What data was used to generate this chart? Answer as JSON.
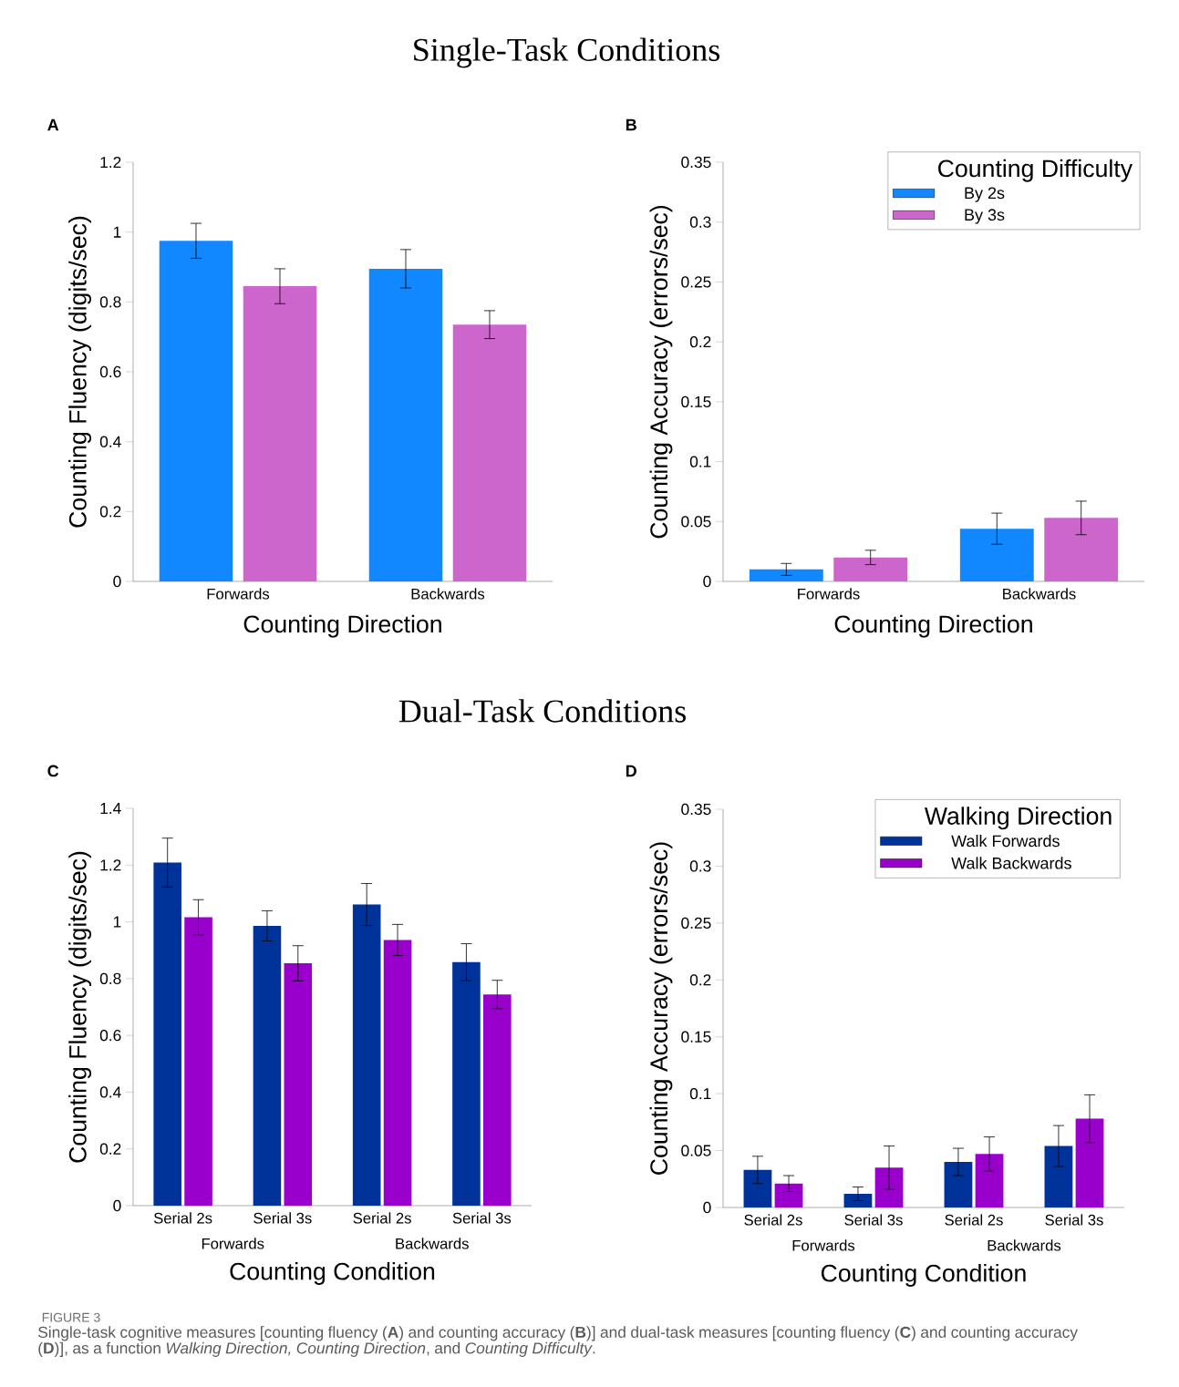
{
  "chart_data": [
    {
      "type": "bar",
      "title": "Single-Task Conditions",
      "subtitle": "A",
      "xlabel": "Counting Direction",
      "ylabel": "Counting Fluency (digits/sec)",
      "categories": [
        "Forwards",
        "Backwards"
      ],
      "ylim": [
        0,
        1.2
      ],
      "yticks": [
        0,
        0.2,
        0.4,
        0.6,
        0.8,
        1,
        1.2
      ],
      "series": [
        {
          "color": "#1188ff",
          "values": [
            0.975,
            0.895
          ],
          "errors": [
            0.05,
            0.055
          ]
        },
        {
          "color": "#cc66cc",
          "values": [
            0.845,
            0.735
          ],
          "errors": [
            0.05,
            0.04
          ]
        }
      ]
    },
    {
      "type": "bar",
      "title": "B",
      "xlabel": "Counting Direction",
      "ylabel": "Counting Accuracy (errors/sec)",
      "categories": [
        "Forwards",
        "Backwards"
      ],
      "ylim": [
        0,
        0.35
      ],
      "yticks": [
        0,
        0.05,
        0.1,
        0.15,
        0.2,
        0.25,
        0.3,
        0.35
      ],
      "legend": "top right",
      "legend_title": "Counting Difficulty",
      "series": [
        {
          "name": "By 2s",
          "color": "#1188ff",
          "values": [
            0.01,
            0.044
          ],
          "errors": [
            0.005,
            0.013
          ]
        },
        {
          "name": "By 3s",
          "color": "#cc66cc",
          "values": [
            0.02,
            0.053
          ],
          "errors": [
            0.006,
            0.014
          ]
        }
      ]
    },
    {
      "type": "bar",
      "title": "Dual-Task Conditions",
      "subtitle": "C",
      "xlabel": "Counting Condition",
      "ylabel": "Counting Fluency (digits/sec)",
      "categories": [
        "Serial 2s",
        "Serial 3s",
        "Serial 2s",
        "Serial 3s"
      ],
      "annotations": [
        "Forwards",
        "Backwards"
      ],
      "ylim": [
        0,
        1.4
      ],
      "yticks": [
        0,
        0.2,
        0.4,
        0.6,
        0.8,
        1,
        1.2,
        1.4
      ],
      "series": [
        {
          "color": "#003399",
          "values": [
            1.209,
            0.986,
            1.061,
            0.858
          ],
          "errors": [
            0.086,
            0.053,
            0.074,
            0.065
          ]
        },
        {
          "color": "#9900cc",
          "values": [
            1.016,
            0.854,
            0.936,
            0.744
          ],
          "errors": [
            0.062,
            0.062,
            0.055,
            0.05
          ]
        }
      ]
    },
    {
      "type": "bar",
      "title": "D",
      "xlabel": "Counting Condition",
      "ylabel": "Counting Accuracy (errors/sec)",
      "categories": [
        "Serial 2s",
        "Serial 3s",
        "Serial 2s",
        "Serial 3s"
      ],
      "annotations": [
        "Forwards",
        "Backwards"
      ],
      "ylim": [
        0,
        0.35
      ],
      "yticks": [
        0,
        0.05,
        0.1,
        0.15,
        0.2,
        0.25,
        0.3,
        0.35
      ],
      "legend": "top right",
      "legend_title": "Walking Direction",
      "series": [
        {
          "name": "Walk Forwards",
          "color": "#003399",
          "values": [
            0.033,
            0.012,
            0.04,
            0.054
          ],
          "errors": [
            0.012,
            0.006,
            0.012,
            0.018
          ]
        },
        {
          "name": "Walk Backwards",
          "color": "#9900cc",
          "values": [
            0.021,
            0.035,
            0.047,
            0.078
          ],
          "errors": [
            0.007,
            0.019,
            0.015,
            0.021
          ]
        }
      ]
    },
    {
      "type": "other",
      "title": "FIGURE 3",
      "annotations": [
        "Single-task cognitive measures [counting fluency (**A**) and counting accuracy (**B**)] and dual-task measures [counting fluency (**C**) and counting accuracy (**D**)], as a function *Walking Direction, Counting Direction*, and *Counting Difficulty*."
      ]
    }
  ]
}
